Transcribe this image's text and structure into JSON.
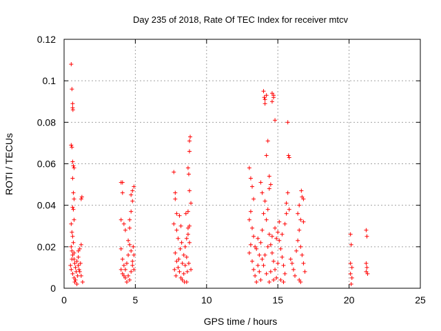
{
  "chart_data": {
    "type": "scatter",
    "title": "Day 235 of 2018, Rate Of TEC Index for receiver mtcv",
    "xlabel": "GPS time / hours",
    "ylabel": "ROTI / TECUs",
    "xlim": [
      0,
      25
    ],
    "ylim": [
      0,
      0.12
    ],
    "x_ticks": [
      "0",
      "5",
      "10",
      "15",
      "20",
      "25"
    ],
    "y_ticks": [
      "0",
      "0.02",
      "0.04",
      "0.06",
      "0.08",
      "0.1",
      "0.12"
    ],
    "grid": true,
    "marker": "+",
    "series": [
      {
        "name": "ROTI",
        "color": "#ff0000",
        "points": [
          [
            0.5,
            0.108
          ],
          [
            0.55,
            0.096
          ],
          [
            0.6,
            0.089
          ],
          [
            0.6,
            0.087
          ],
          [
            0.62,
            0.086
          ],
          [
            0.5,
            0.069
          ],
          [
            0.55,
            0.068
          ],
          [
            0.6,
            0.061
          ],
          [
            0.65,
            0.059
          ],
          [
            0.7,
            0.058
          ],
          [
            0.6,
            0.053
          ],
          [
            0.65,
            0.046
          ],
          [
            0.7,
            0.043
          ],
          [
            0.6,
            0.039
          ],
          [
            0.65,
            0.038
          ],
          [
            0.7,
            0.033
          ],
          [
            0.5,
            0.031
          ],
          [
            0.55,
            0.027
          ],
          [
            0.6,
            0.025
          ],
          [
            0.65,
            0.022
          ],
          [
            0.5,
            0.02
          ],
          [
            0.55,
            0.018
          ],
          [
            0.6,
            0.016
          ],
          [
            0.7,
            0.014
          ],
          [
            0.75,
            0.012
          ],
          [
            0.8,
            0.01
          ],
          [
            0.5,
            0.009
          ],
          [
            0.6,
            0.007
          ],
          [
            0.7,
            0.005
          ],
          [
            0.8,
            0.004
          ],
          [
            0.9,
            0.013
          ],
          [
            1.0,
            0.011
          ],
          [
            1.1,
            0.008
          ],
          [
            1.2,
            0.006
          ],
          [
            1.0,
            0.015
          ],
          [
            1.1,
            0.019
          ],
          [
            1.2,
            0.021
          ],
          [
            1.25,
            0.044
          ],
          [
            1.2,
            0.043
          ],
          [
            1.3,
            0.003
          ],
          [
            0.45,
            0.011
          ],
          [
            0.55,
            0.014
          ],
          [
            0.7,
            0.017
          ],
          [
            0.85,
            0.008
          ],
          [
            0.95,
            0.006
          ],
          [
            1.05,
            0.009
          ],
          [
            1.15,
            0.012
          ],
          [
            0.75,
            0.003
          ],
          [
            0.9,
            0.002
          ],
          [
            1.0,
            0.018
          ],
          [
            4.0,
            0.051
          ],
          [
            4.1,
            0.051
          ],
          [
            4.1,
            0.046
          ],
          [
            4.0,
            0.033
          ],
          [
            4.2,
            0.031
          ],
          [
            4.3,
            0.028
          ],
          [
            4.0,
            0.019
          ],
          [
            4.1,
            0.014
          ],
          [
            4.2,
            0.011
          ],
          [
            4.0,
            0.009
          ],
          [
            4.1,
            0.007
          ],
          [
            4.3,
            0.005
          ],
          [
            4.4,
            0.012
          ],
          [
            4.5,
            0.016
          ],
          [
            4.6,
            0.021
          ],
          [
            4.7,
            0.018
          ],
          [
            4.8,
            0.013
          ],
          [
            4.9,
            0.009
          ],
          [
            4.5,
            0.006
          ],
          [
            4.6,
            0.004
          ],
          [
            4.7,
            0.008
          ],
          [
            4.8,
            0.011
          ],
          [
            4.6,
            0.033
          ],
          [
            4.7,
            0.037
          ],
          [
            4.8,
            0.042
          ],
          [
            4.8,
            0.047
          ],
          [
            4.9,
            0.049
          ],
          [
            4.7,
            0.045
          ],
          [
            4.6,
            0.029
          ],
          [
            4.5,
            0.023
          ],
          [
            4.4,
            0.003
          ],
          [
            4.2,
            0.006
          ],
          [
            4.9,
            0.016
          ],
          [
            4.3,
            0.009
          ],
          [
            4.85,
            0.02
          ],
          [
            7.7,
            0.056
          ],
          [
            7.8,
            0.046
          ],
          [
            7.8,
            0.043
          ],
          [
            7.9,
            0.036
          ],
          [
            7.7,
            0.031
          ],
          [
            7.9,
            0.028
          ],
          [
            8.0,
            0.024
          ],
          [
            7.8,
            0.017
          ],
          [
            7.9,
            0.013
          ],
          [
            8.0,
            0.01
          ],
          [
            8.1,
            0.008
          ],
          [
            8.2,
            0.005
          ],
          [
            8.3,
            0.012
          ],
          [
            8.4,
            0.016
          ],
          [
            8.5,
            0.02
          ],
          [
            8.6,
            0.024
          ],
          [
            8.7,
            0.029
          ],
          [
            8.8,
            0.03
          ],
          [
            8.7,
            0.026
          ],
          [
            8.8,
            0.022
          ],
          [
            8.6,
            0.015
          ],
          [
            8.5,
            0.011
          ],
          [
            8.4,
            0.007
          ],
          [
            8.3,
            0.004
          ],
          [
            8.6,
            0.003
          ],
          [
            8.8,
            0.066
          ],
          [
            8.85,
            0.073
          ],
          [
            8.8,
            0.071
          ],
          [
            8.7,
            0.058
          ],
          [
            8.75,
            0.055
          ],
          [
            8.8,
            0.047
          ],
          [
            8.9,
            0.041
          ],
          [
            8.7,
            0.037
          ],
          [
            7.75,
            0.009
          ],
          [
            7.85,
            0.006
          ],
          [
            8.05,
            0.014
          ],
          [
            8.15,
            0.019
          ],
          [
            8.25,
            0.022
          ],
          [
            8.45,
            0.003
          ],
          [
            8.9,
            0.009
          ],
          [
            8.2,
            0.03
          ],
          [
            8.1,
            0.035
          ],
          [
            8.55,
            0.036
          ],
          [
            8.65,
            0.008
          ],
          [
            8.75,
            0.012
          ],
          [
            13.0,
            0.058
          ],
          [
            13.1,
            0.053
          ],
          [
            13.2,
            0.049
          ],
          [
            13.3,
            0.043
          ],
          [
            13.1,
            0.037
          ],
          [
            13.0,
            0.033
          ],
          [
            13.2,
            0.029
          ],
          [
            13.3,
            0.025
          ],
          [
            13.1,
            0.021
          ],
          [
            13.0,
            0.017
          ],
          [
            13.2,
            0.013
          ],
          [
            13.3,
            0.009
          ],
          [
            13.4,
            0.006
          ],
          [
            13.5,
            0.003
          ],
          [
            13.6,
            0.011
          ],
          [
            13.7,
            0.016
          ],
          [
            13.8,
            0.022
          ],
          [
            13.9,
            0.028
          ],
          [
            14.0,
            0.036
          ],
          [
            14.1,
            0.042
          ],
          [
            13.9,
            0.046
          ],
          [
            13.8,
            0.051
          ],
          [
            14.0,
            0.095
          ],
          [
            14.05,
            0.092
          ],
          [
            14.1,
            0.091
          ],
          [
            14.1,
            0.089
          ],
          [
            14.2,
            0.093
          ],
          [
            14.3,
            0.071
          ],
          [
            14.2,
            0.064
          ],
          [
            14.4,
            0.054
          ],
          [
            14.5,
            0.05
          ],
          [
            14.4,
            0.048
          ],
          [
            14.3,
            0.038
          ],
          [
            14.2,
            0.033
          ],
          [
            14.4,
            0.026
          ],
          [
            14.5,
            0.021
          ],
          [
            14.6,
            0.017
          ],
          [
            14.7,
            0.013
          ],
          [
            14.8,
            0.009
          ],
          [
            14.9,
            0.005
          ],
          [
            14.6,
            0.094
          ],
          [
            14.7,
            0.093
          ],
          [
            14.7,
            0.092
          ],
          [
            14.6,
            0.09
          ],
          [
            14.8,
            0.081
          ],
          [
            15.0,
            0.027
          ],
          [
            15.1,
            0.023
          ],
          [
            15.2,
            0.019
          ],
          [
            15.3,
            0.015
          ],
          [
            15.4,
            0.011
          ],
          [
            15.5,
            0.007
          ],
          [
            15.4,
            0.003
          ],
          [
            15.5,
            0.031
          ],
          [
            15.6,
            0.036
          ],
          [
            15.7,
            0.08
          ],
          [
            15.75,
            0.064
          ],
          [
            15.8,
            0.063
          ],
          [
            15.7,
            0.046
          ],
          [
            15.6,
            0.041
          ],
          [
            15.8,
            0.038
          ],
          [
            15.9,
            0.014
          ],
          [
            16.0,
            0.012
          ],
          [
            16.1,
            0.009
          ],
          [
            16.2,
            0.006
          ],
          [
            16.3,
            0.018
          ],
          [
            16.4,
            0.023
          ],
          [
            16.5,
            0.028
          ],
          [
            16.6,
            0.033
          ],
          [
            16.7,
            0.044
          ],
          [
            16.65,
            0.047
          ],
          [
            16.8,
            0.043
          ],
          [
            16.5,
            0.04
          ],
          [
            16.4,
            0.036
          ],
          [
            16.6,
            0.02
          ],
          [
            16.7,
            0.016
          ],
          [
            16.8,
            0.012
          ],
          [
            16.9,
            0.008
          ],
          [
            16.5,
            0.004
          ],
          [
            16.6,
            0.003
          ],
          [
            16.8,
            0.032
          ],
          [
            13.5,
            0.019
          ],
          [
            13.6,
            0.024
          ],
          [
            13.7,
            0.008
          ],
          [
            13.8,
            0.004
          ],
          [
            14.0,
            0.011
          ],
          [
            14.1,
            0.016
          ],
          [
            14.3,
            0.02
          ],
          [
            14.5,
            0.008
          ],
          [
            14.7,
            0.004
          ],
          [
            14.9,
            0.024
          ],
          [
            15.0,
            0.012
          ],
          [
            15.2,
            0.004
          ],
          [
            15.3,
            0.026
          ],
          [
            15.1,
            0.032
          ],
          [
            14.8,
            0.029
          ],
          [
            14.6,
            0.025
          ],
          [
            14.4,
            0.003
          ],
          [
            14.2,
            0.007
          ],
          [
            13.9,
            0.014
          ],
          [
            13.4,
            0.02
          ],
          [
            20.1,
            0.026
          ],
          [
            20.15,
            0.021
          ],
          [
            20.1,
            0.012
          ],
          [
            20.2,
            0.01
          ],
          [
            20.1,
            0.007
          ],
          [
            20.2,
            0.005
          ],
          [
            20.15,
            0.002
          ],
          [
            21.2,
            0.028
          ],
          [
            21.25,
            0.025
          ],
          [
            21.2,
            0.012
          ],
          [
            21.25,
            0.01
          ],
          [
            21.2,
            0.008
          ],
          [
            21.3,
            0.007
          ]
        ]
      }
    ]
  }
}
